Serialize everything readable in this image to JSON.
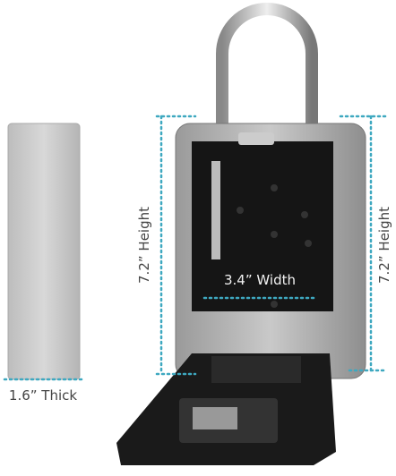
{
  "labels": {
    "thickness": "1.6” Thick",
    "height_left": "7.2” Height",
    "width": "3.4” Width",
    "height_right": "7.2” Height"
  }
}
